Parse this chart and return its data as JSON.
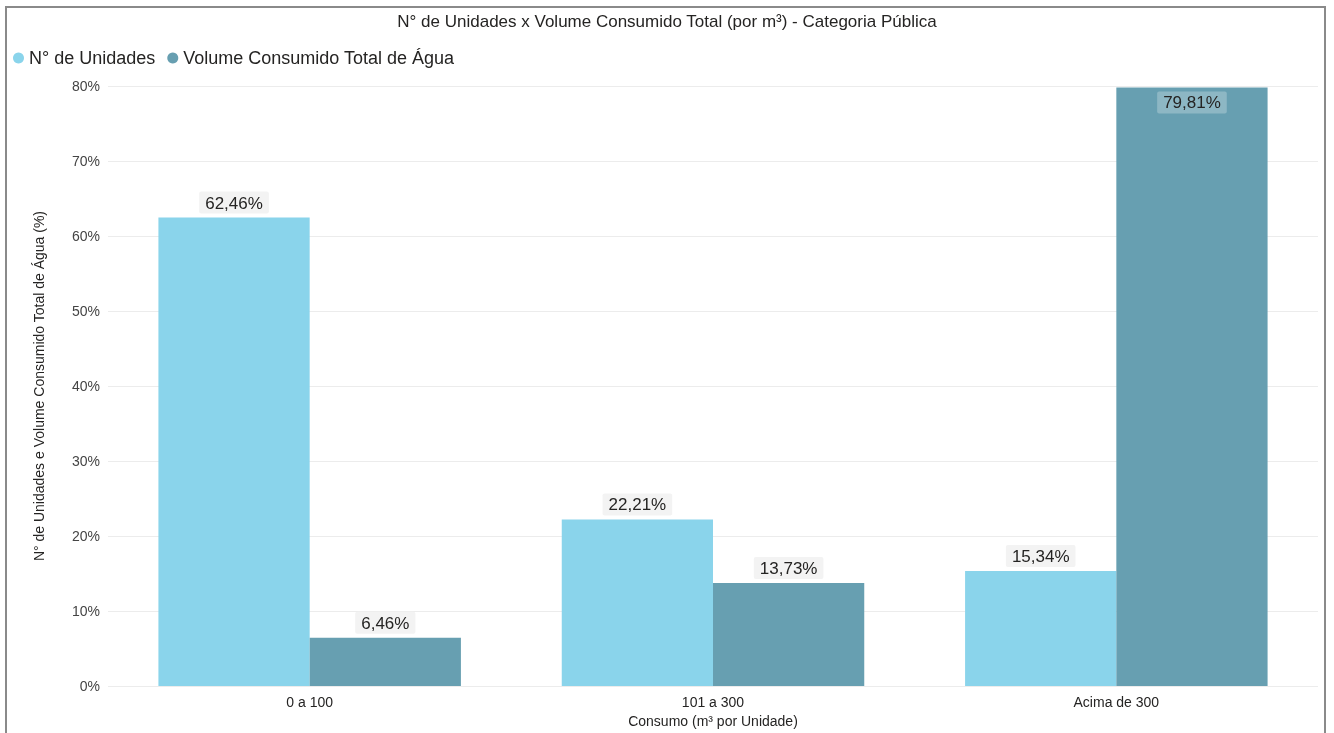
{
  "chart_data": {
    "type": "bar",
    "title": "N° de Unidades x Volume Consumido Total (por m³) - Categoria Pública",
    "xlabel": "Consumo (m³ por Unidade)",
    "ylabel": "N° de Unidades e Volume Consumido Total de Água (%)",
    "categories": [
      "0 a 100",
      "101 a 300",
      "Acima de 300"
    ],
    "series": [
      {
        "name": "N° de Unidades",
        "color": "#8ad4eb",
        "values": [
          62.46,
          22.21,
          15.34
        ],
        "value_labels": [
          "62,46%",
          "22,21%",
          "15,34%"
        ]
      },
      {
        "name": "Volume Consumido Total de Água",
        "color": "#679fb1",
        "values": [
          6.46,
          13.73,
          79.81
        ],
        "value_labels": [
          "6,46%",
          "13,73%",
          "79,81%"
        ]
      }
    ],
    "ylim": [
      0,
      80
    ],
    "yticks": [
      {
        "value": 0,
        "label": "0%"
      },
      {
        "value": 10,
        "label": "10%"
      },
      {
        "value": 20,
        "label": "20%"
      },
      {
        "value": 30,
        "label": "30%"
      },
      {
        "value": 40,
        "label": "40%"
      },
      {
        "value": 50,
        "label": "50%"
      },
      {
        "value": 60,
        "label": "60%"
      },
      {
        "value": 70,
        "label": "70%"
      },
      {
        "value": 80,
        "label": "80%"
      }
    ],
    "grid": "y",
    "legend": "top left"
  }
}
